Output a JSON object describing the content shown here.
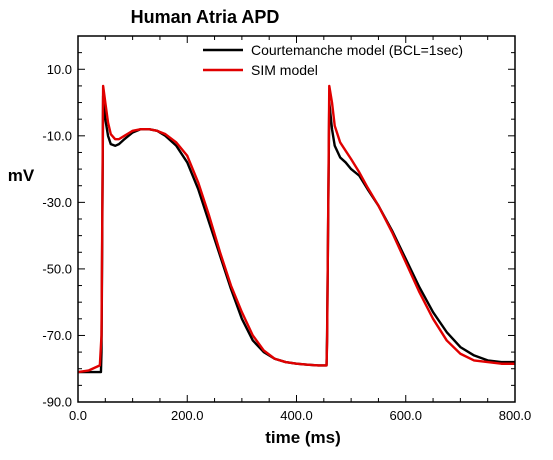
{
  "chart_data": {
    "type": "line",
    "title": "Human Atria  APD",
    "xlabel": "time (ms)",
    "ylabel": "mV",
    "xlim": [
      0,
      800
    ],
    "ylim": [
      -90,
      20
    ],
    "x_ticks": [
      0,
      200,
      400,
      600,
      800
    ],
    "x_tick_labels": [
      "0.0",
      "200.0",
      "400.0",
      "600.0",
      "800.0"
    ],
    "y_ticks": [
      -90,
      -70,
      -50,
      -30,
      -10,
      10
    ],
    "y_tick_labels": [
      "-90.0",
      "-70.0",
      "-50.0",
      "-30.0",
      "-10.0",
      "10.0"
    ],
    "grid": false,
    "legend_position": "top-right",
    "series": [
      {
        "name": "Courtemanche model  (BCL=1sec)",
        "color": "#000000",
        "x": [
          0,
          42,
          43,
          46,
          50,
          55,
          60,
          68,
          75,
          85,
          100,
          115,
          130,
          145,
          160,
          180,
          200,
          220,
          240,
          260,
          280,
          300,
          320,
          340,
          360,
          380,
          400,
          420,
          440,
          455,
          456,
          460,
          465,
          470,
          480,
          490,
          500,
          515,
          530,
          550,
          575,
          600,
          625,
          650,
          675,
          700,
          725,
          750,
          775,
          800
        ],
        "y": [
          -81,
          -81,
          -75,
          2,
          -5,
          -10,
          -12.5,
          -13,
          -12.5,
          -11,
          -9,
          -8,
          -8,
          -8.5,
          -10,
          -13,
          -18,
          -26,
          -36,
          -46,
          -56,
          -65,
          -71.5,
          -75,
          -77,
          -78,
          -78.5,
          -78.8,
          -79,
          -79,
          -70,
          0,
          -8,
          -13,
          -16.5,
          -18,
          -20,
          -22,
          -26,
          -31,
          -38.5,
          -47,
          -55.5,
          -63,
          -69,
          -73.5,
          -76,
          -77.5,
          -78,
          -78
        ]
      },
      {
        "name": "SIM model",
        "color": "#e00000",
        "x": [
          0,
          20,
          40,
          43,
          46,
          50,
          55,
          60,
          68,
          75,
          85,
          100,
          115,
          130,
          145,
          160,
          180,
          200,
          220,
          240,
          260,
          280,
          300,
          320,
          340,
          360,
          380,
          400,
          420,
          440,
          455,
          456,
          460,
          465,
          470,
          480,
          490,
          500,
          515,
          530,
          550,
          575,
          600,
          625,
          650,
          675,
          700,
          725,
          750,
          775,
          800
        ],
        "y": [
          -81,
          -80.5,
          -79,
          -70,
          5,
          0,
          -6,
          -9.5,
          -11,
          -11,
          -10,
          -8.5,
          -8,
          -8,
          -8.5,
          -9.5,
          -12,
          -16,
          -24,
          -34,
          -45,
          -55,
          -63,
          -70,
          -74.5,
          -77,
          -78,
          -78.5,
          -78.8,
          -79,
          -79,
          -72,
          5,
          0,
          -7,
          -12,
          -14.5,
          -17,
          -21,
          -25.5,
          -31,
          -39,
          -48,
          -57,
          -65,
          -71.5,
          -75.5,
          -77.5,
          -78,
          -78.5,
          -78.5
        ]
      }
    ]
  }
}
